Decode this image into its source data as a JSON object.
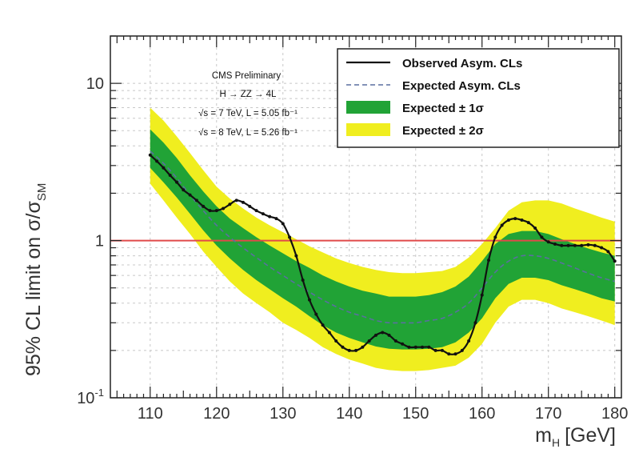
{
  "chart_data": {
    "type": "line",
    "title": "",
    "xlabel": "m",
    "xlabel_sub": "H",
    "xlabel_unit": "[GeV]",
    "ylabel": "95% CL limit on σ/σ",
    "ylabel_sub": "SM",
    "xlim": [
      104,
      181
    ],
    "ylim": [
      0.1,
      20
    ],
    "yscale": "log",
    "grid": true,
    "legend_position": "top-right",
    "x_ticks": [
      "110",
      "120",
      "130",
      "140",
      "150",
      "160",
      "170",
      "180"
    ],
    "y_ticks": [
      {
        "value": 0.1,
        "base": "10",
        "exp": "-1"
      },
      {
        "value": 1,
        "base": "1",
        "exp": ""
      },
      {
        "value": 10,
        "base": "10",
        "exp": ""
      }
    ],
    "annotations": [
      "CMS Preliminary",
      "H → ZZ → 4L",
      "√s = 7 TeV, L = 5.05 fb⁻¹",
      "√s = 8 TeV, L = 5.26 fb⁻¹"
    ],
    "reference_line": {
      "y": 1,
      "color": "#e04a4a"
    },
    "legend": [
      {
        "label": "Observed Asym. CLs",
        "style": "solid-line"
      },
      {
        "label": "Expected Asym. CLs",
        "style": "dashed-line"
      },
      {
        "label": "Expected ± 1σ",
        "style": "band",
        "color": "#21a336"
      },
      {
        "label": "Expected ± 2σ",
        "style": "band",
        "color": "#f0ee1f"
      }
    ],
    "colors": {
      "observed": "#111111",
      "expected": "#5a6fa0",
      "band_1sigma": "#21a336",
      "band_2sigma": "#f0ee1f",
      "reference": "#e04a4a"
    },
    "series": [
      {
        "name": "Observed Asym. CLs",
        "x": [
          110,
          111,
          112,
          113,
          114,
          115,
          116,
          117,
          118,
          119,
          120,
          121,
          122,
          123,
          124,
          125,
          126,
          127,
          128,
          129,
          130,
          131,
          132,
          133,
          134,
          135,
          136,
          137,
          138,
          139,
          140,
          141,
          142,
          143,
          144,
          145,
          146,
          147,
          148,
          149,
          150,
          151,
          152,
          153,
          154,
          155,
          156,
          157,
          158,
          159,
          160,
          161,
          162,
          163,
          164,
          165,
          166,
          167,
          168,
          169,
          170,
          171,
          172,
          173,
          174,
          175,
          176,
          177,
          178,
          179,
          180
        ],
        "y": [
          3.5,
          3.2,
          2.9,
          2.6,
          2.35,
          2.1,
          1.95,
          1.8,
          1.65,
          1.55,
          1.55,
          1.6,
          1.7,
          1.8,
          1.75,
          1.65,
          1.55,
          1.48,
          1.42,
          1.38,
          1.28,
          1.05,
          0.8,
          0.56,
          0.42,
          0.34,
          0.29,
          0.26,
          0.23,
          0.21,
          0.2,
          0.2,
          0.21,
          0.23,
          0.25,
          0.26,
          0.25,
          0.23,
          0.22,
          0.21,
          0.21,
          0.21,
          0.21,
          0.2,
          0.2,
          0.19,
          0.19,
          0.2,
          0.23,
          0.3,
          0.45,
          0.75,
          1.05,
          1.25,
          1.35,
          1.38,
          1.35,
          1.3,
          1.2,
          1.05,
          0.98,
          0.95,
          0.93,
          0.93,
          0.93,
          0.93,
          0.94,
          0.93,
          0.9,
          0.85,
          0.74
        ]
      },
      {
        "name": "Expected Asym. CLs",
        "x": [
          110,
          112,
          114,
          116,
          118,
          120,
          122,
          124,
          126,
          128,
          130,
          132,
          134,
          136,
          138,
          140,
          142,
          144,
          146,
          148,
          150,
          152,
          154,
          156,
          158,
          160,
          162,
          164,
          166,
          168,
          170,
          172,
          174,
          176,
          178,
          180
        ],
        "y": [
          3.7,
          3.1,
          2.5,
          1.95,
          1.55,
          1.25,
          1.05,
          0.9,
          0.78,
          0.68,
          0.6,
          0.53,
          0.47,
          0.42,
          0.38,
          0.35,
          0.33,
          0.31,
          0.3,
          0.3,
          0.3,
          0.31,
          0.32,
          0.35,
          0.4,
          0.5,
          0.63,
          0.74,
          0.8,
          0.8,
          0.77,
          0.72,
          0.67,
          0.62,
          0.58,
          0.55
        ]
      }
    ],
    "bands": [
      {
        "name": "Expected ± 2σ",
        "x": [
          110,
          112,
          114,
          116,
          118,
          120,
          122,
          124,
          126,
          128,
          130,
          132,
          134,
          136,
          138,
          140,
          142,
          144,
          146,
          148,
          150,
          152,
          154,
          156,
          158,
          160,
          162,
          164,
          166,
          168,
          170,
          172,
          174,
          176,
          178,
          180
        ],
        "lower": [
          2.3,
          1.8,
          1.4,
          1.1,
          0.85,
          0.68,
          0.55,
          0.46,
          0.4,
          0.35,
          0.3,
          0.27,
          0.24,
          0.21,
          0.19,
          0.175,
          0.165,
          0.155,
          0.15,
          0.148,
          0.148,
          0.15,
          0.155,
          0.16,
          0.18,
          0.22,
          0.3,
          0.38,
          0.42,
          0.42,
          0.4,
          0.37,
          0.35,
          0.33,
          0.31,
          0.29
        ],
        "upper": [
          7,
          5.8,
          4.6,
          3.6,
          2.8,
          2.2,
          1.85,
          1.6,
          1.4,
          1.25,
          1.13,
          1.02,
          0.92,
          0.84,
          0.77,
          0.72,
          0.68,
          0.65,
          0.63,
          0.62,
          0.62,
          0.63,
          0.64,
          0.68,
          0.78,
          0.95,
          1.2,
          1.55,
          1.75,
          1.8,
          1.8,
          1.72,
          1.6,
          1.5,
          1.4,
          1.32
        ]
      },
      {
        "name": "Expected ± 1σ",
        "x": [
          110,
          112,
          114,
          116,
          118,
          120,
          122,
          124,
          126,
          128,
          130,
          132,
          134,
          136,
          138,
          140,
          142,
          144,
          146,
          148,
          150,
          152,
          154,
          156,
          158,
          160,
          162,
          164,
          166,
          168,
          170,
          172,
          174,
          176,
          178,
          180
        ],
        "lower": [
          2.9,
          2.35,
          1.88,
          1.48,
          1.16,
          0.93,
          0.77,
          0.65,
          0.56,
          0.49,
          0.43,
          0.38,
          0.33,
          0.29,
          0.26,
          0.24,
          0.225,
          0.212,
          0.205,
          0.203,
          0.203,
          0.205,
          0.21,
          0.225,
          0.26,
          0.32,
          0.43,
          0.53,
          0.58,
          0.58,
          0.56,
          0.52,
          0.49,
          0.46,
          0.43,
          0.41
        ],
        "upper": [
          5.1,
          4.2,
          3.35,
          2.6,
          2.05,
          1.65,
          1.38,
          1.2,
          1.05,
          0.93,
          0.83,
          0.74,
          0.67,
          0.6,
          0.55,
          0.51,
          0.48,
          0.46,
          0.44,
          0.44,
          0.44,
          0.45,
          0.47,
          0.51,
          0.59,
          0.74,
          0.95,
          1.1,
          1.15,
          1.15,
          1.1,
          1.02,
          0.95,
          0.89,
          0.84,
          0.8
        ]
      }
    ]
  }
}
